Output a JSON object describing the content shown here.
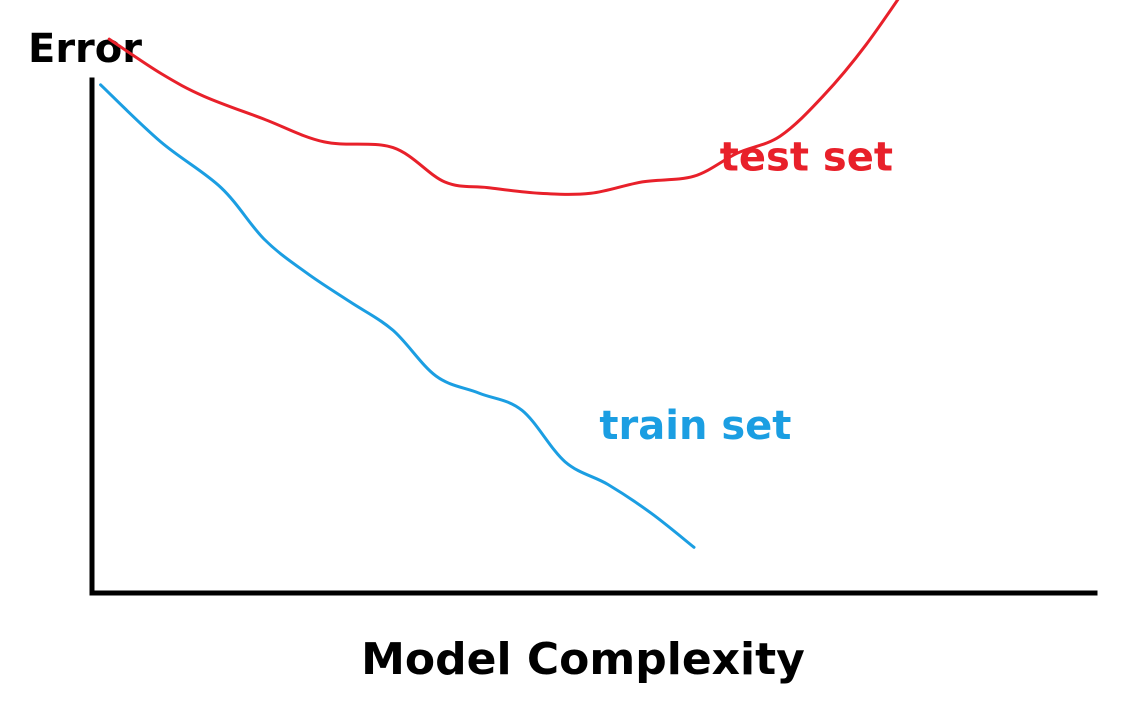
{
  "chart_data": {
    "type": "line",
    "title": "",
    "xlabel": "Model Complexity",
    "ylabel": "Error",
    "xlim": [
      0,
      10
    ],
    "ylim": [
      0,
      10
    ],
    "grid": false,
    "legend": "none",
    "series": [
      {
        "name": "test set",
        "color": "#e8202a",
        "x": [
          0.2,
          0.8,
          1.3,
          2.0,
          2.7,
          3.5,
          4.1,
          4.6,
          5.2,
          5.8,
          6.4,
          7.0,
          7.5,
          8.0,
          8.5,
          9.0,
          9.6
        ],
        "y": [
          9.7,
          9.1,
          8.7,
          8.3,
          7.9,
          7.8,
          7.2,
          7.1,
          7.0,
          7.0,
          7.2,
          7.3,
          7.7,
          8.0,
          8.7,
          9.6,
          10.9
        ]
      },
      {
        "name": "train set",
        "color": "#1b9ee2",
        "x": [
          0.1,
          0.8,
          1.5,
          2.0,
          2.5,
          3.0,
          3.5,
          4.0,
          4.5,
          5.0,
          5.5,
          6.0,
          6.5,
          7.0
        ],
        "y": [
          8.9,
          7.9,
          7.1,
          6.2,
          5.6,
          5.1,
          4.6,
          3.8,
          3.5,
          3.2,
          2.3,
          1.9,
          1.4,
          0.8
        ]
      }
    ],
    "annotations": [
      {
        "text": "test set",
        "series": "test set",
        "x": 7.3,
        "y": 7.4
      },
      {
        "text": "train set",
        "series": "train set",
        "x": 5.9,
        "y": 2.7
      }
    ]
  }
}
